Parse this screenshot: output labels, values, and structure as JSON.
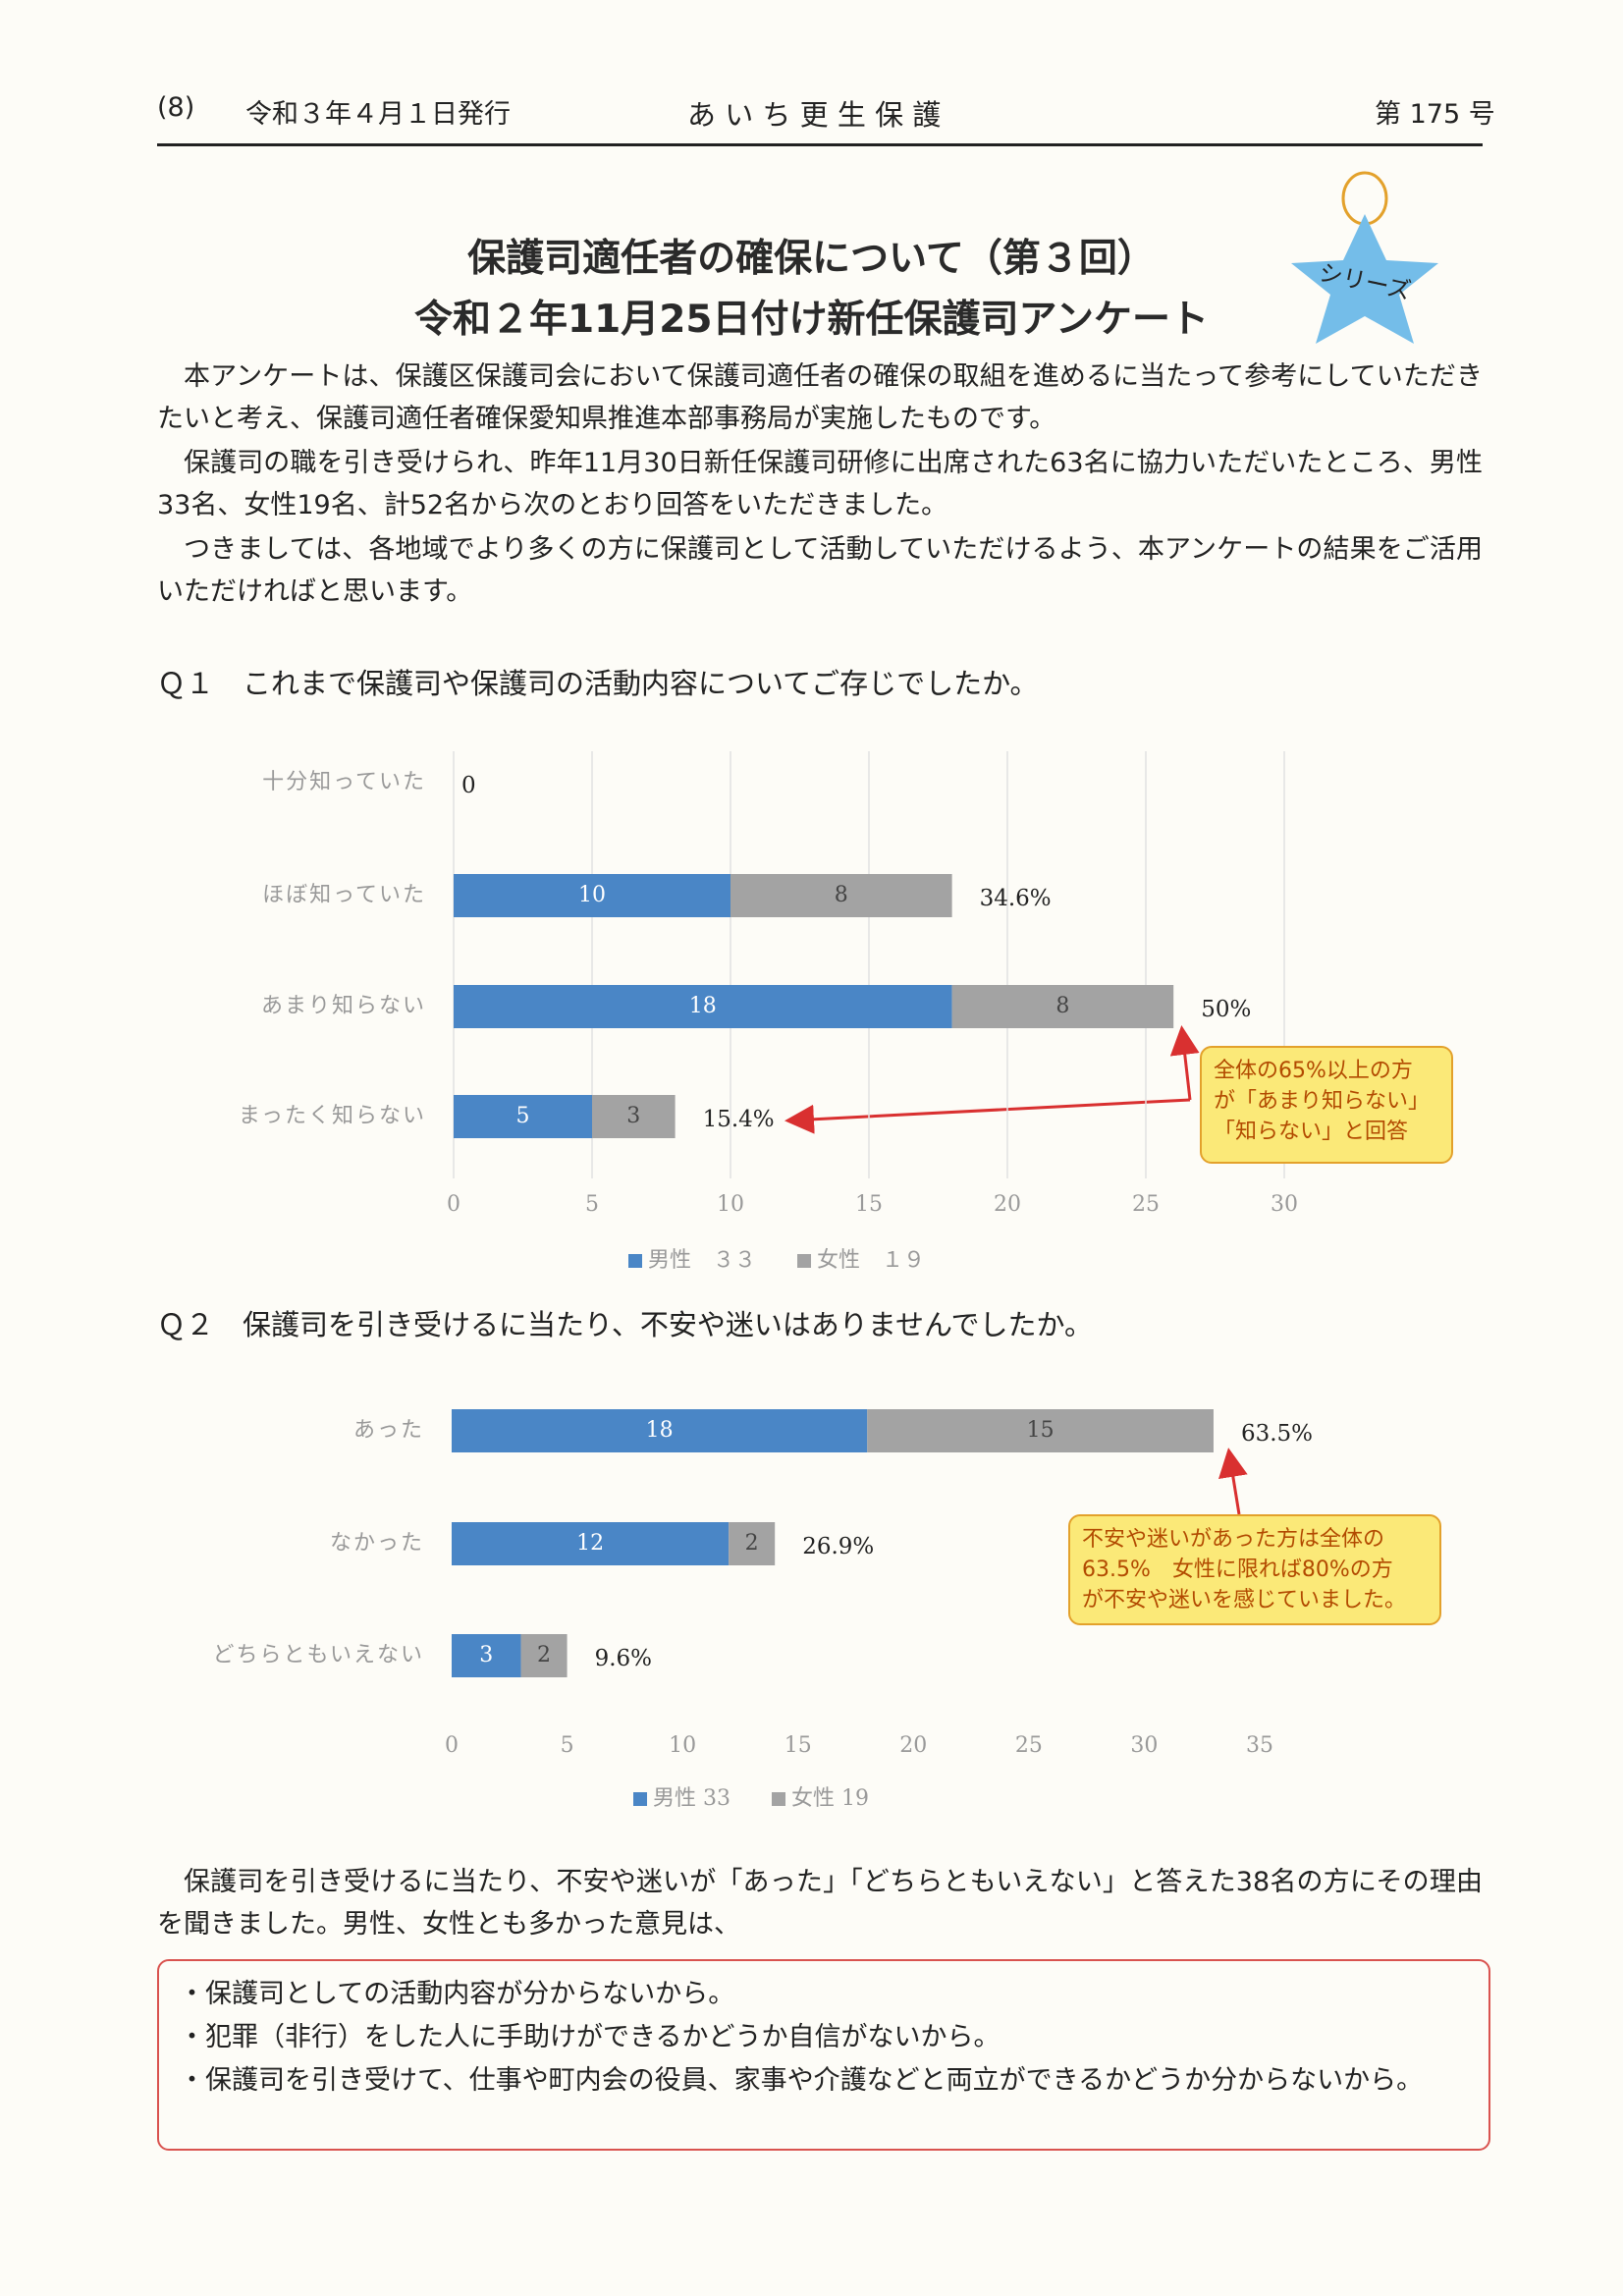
{
  "header": {
    "page": "(8)",
    "date": "令和３年４月１日発行",
    "publication": "あ い ち 更 生 保 護",
    "issue": "第 175 号"
  },
  "badge": "シリーズ",
  "title": [
    "保護司適任者の確保について（第３回）",
    "令和２年11月25日付け新任保護司アンケート"
  ],
  "intro": [
    "本アンケートは、保護区保護司会において保護司適任者の確保の取組を進めるに当たって参考にしていただきたいと考え、保護司適任者確保愛知県推進本部事務局が実施したものです。",
    "保護司の職を引き受けられ、昨年11月30日新任保護司研修に出席された63名に協力いただいたところ、男性33名、女性19名、計52名から次のとおり回答をいただきました。",
    "つきましては、各地域でより多くの方に保護司として活動していただけるよう、本アンケートの結果をご活用いただければと思います。"
  ],
  "chart_data": [
    {
      "type": "bar",
      "orientation": "horizontal",
      "stacked": true,
      "title": "Ｑ１　これまで保護司や保護司の活動内容についてご存じでしたか。",
      "categories": [
        "十分知っていた",
        "ほぼ知っていた",
        "あまり知らない",
        "まったく知らない"
      ],
      "series": [
        {
          "name": "男性　３３",
          "color": "#4a86c6",
          "values": [
            0,
            10,
            18,
            5
          ]
        },
        {
          "name": "女性　１９",
          "color": "#a3a3a3",
          "values": [
            0,
            8,
            8,
            3
          ]
        }
      ],
      "share_labels": [
        "0",
        "34.6%",
        "50%",
        "15.4%"
      ],
      "xlim": [
        0,
        30
      ],
      "xticks": [
        0,
        5,
        10,
        15,
        20,
        25,
        30
      ],
      "grid": true,
      "legend": "bottom",
      "annotation": [
        "全体の65%以上の方",
        "が「あまり知らない」",
        "「知らない」と回答"
      ]
    },
    {
      "type": "bar",
      "orientation": "horizontal",
      "stacked": true,
      "title": "Ｑ２　保護司を引き受けるに当たり、不安や迷いはありませんでしたか。",
      "categories": [
        "あった",
        "なかった",
        "どちらともいえない"
      ],
      "series": [
        {
          "name": "男性 33",
          "color": "#4a86c6",
          "values": [
            18,
            12,
            3
          ]
        },
        {
          "name": "女性 19",
          "color": "#a3a3a3",
          "values": [
            15,
            2,
            2
          ]
        }
      ],
      "share_labels": [
        "63.5%",
        "26.9%",
        "9.6%"
      ],
      "xlim": [
        0,
        35
      ],
      "xticks": [
        0,
        5,
        10,
        15,
        20,
        25,
        30,
        35
      ],
      "grid": false,
      "legend": "bottom",
      "annotation": [
        "不安や迷いがあった方は全体の",
        "63.5%　女性に限れば80%の方",
        "が不安や迷いを感じていました。"
      ]
    }
  ],
  "followup": "保護司を引き受けるに当たり、不安や迷いが「あった」「どちらともいえない」と答えた38名の方にその理由を聞きました。男性、女性とも多かった意見は、",
  "reasons": [
    "・保護司としての活動内容が分からないから。",
    "・犯罪（非行）をした人に手助けができるかどうか自信がないから。",
    "・保護司を引き受けて、仕事や町内会の役員、家事や介護などと両立ができるかどうか分からないから。"
  ]
}
